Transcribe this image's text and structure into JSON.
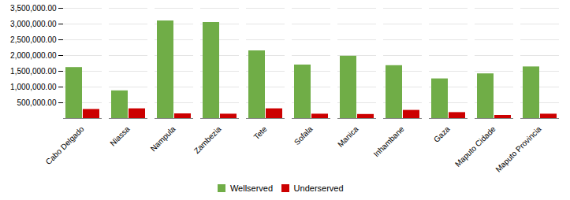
{
  "chart_data": {
    "type": "bar",
    "categories": [
      "Cabo Delgado",
      "Niassa",
      "Nampula",
      "Zambezia",
      "Tete",
      "Sofala",
      "Manica",
      "Inhambane",
      "Gaza",
      "Maputo Cidade",
      "Maputo Provincia"
    ],
    "series": [
      {
        "name": "Wellserved",
        "color": "#70AD47",
        "values": [
          1620000,
          880000,
          3100000,
          3050000,
          2150000,
          1700000,
          1980000,
          1680000,
          1260000,
          1420000,
          1640000
        ]
      },
      {
        "name": "Underserved",
        "color": "#CC0000",
        "values": [
          290000,
          310000,
          150000,
          140000,
          310000,
          140000,
          130000,
          260000,
          190000,
          100000,
          140000
        ]
      }
    ],
    "ylim": [
      0,
      3500000
    ],
    "yticks": [
      {
        "value": 500000,
        "label": "500,000.00"
      },
      {
        "value": 1000000,
        "label": "1,000,000.00"
      },
      {
        "value": 1500000,
        "label": "1,500,000.00"
      },
      {
        "value": 2000000,
        "label": "2,000,000.00"
      },
      {
        "value": 2500000,
        "label": "2,500,000.00"
      },
      {
        "value": 3000000,
        "label": "3,000,000.00"
      },
      {
        "value": 3500000,
        "label": "3,500,000.00"
      }
    ],
    "grid": true,
    "legend": "bottom"
  }
}
